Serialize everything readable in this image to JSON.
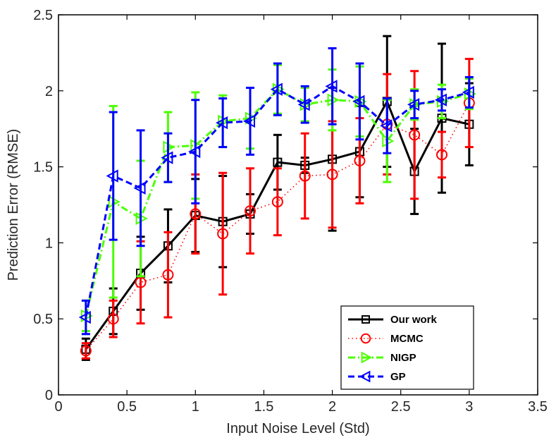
{
  "chart_data": {
    "type": "line",
    "title": "",
    "xlabel": "Input Noise Level (Std)",
    "ylabel": "Prediction Error (RMSE)",
    "xlim": [
      0,
      3.5
    ],
    "ylim": [
      0,
      2.5
    ],
    "xticks": [
      0,
      0.5,
      1,
      1.5,
      2,
      2.5,
      3,
      3.5
    ],
    "xtick_labels": [
      "0",
      "0.5",
      "1",
      "1.5",
      "2",
      "2.5",
      "3",
      "3.5"
    ],
    "yticks": [
      0,
      0.5,
      1,
      1.5,
      2,
      2.5
    ],
    "ytick_labels": [
      "0",
      "0.5",
      "1",
      "1.5",
      "2",
      "2.5"
    ],
    "legend_position": "bottom-right",
    "x": [
      0.2,
      0.4,
      0.6,
      0.8,
      1.0,
      1.2,
      1.4,
      1.6,
      1.8,
      2.0,
      2.2,
      2.4,
      2.6,
      2.8,
      3.0
    ],
    "series": [
      {
        "name": "Our work",
        "color": "#000000",
        "dash": "solid",
        "marker": "square",
        "values": [
          0.3,
          0.55,
          0.8,
          0.98,
          1.18,
          1.14,
          1.19,
          1.53,
          1.51,
          1.55,
          1.6,
          1.93,
          1.47,
          1.82,
          1.78
        ],
        "errors": [
          0.07,
          0.15,
          0.24,
          0.24,
          0.24,
          0.3,
          0.13,
          0.18,
          0.05,
          0.47,
          0.3,
          0.43,
          0.28,
          0.49,
          0.27
        ]
      },
      {
        "name": "MCMC",
        "color": "#ff0000",
        "dash": "dotted",
        "marker": "circle",
        "values": [
          0.29,
          0.5,
          0.74,
          0.79,
          1.19,
          1.06,
          1.21,
          1.27,
          1.44,
          1.45,
          1.54,
          1.78,
          1.71,
          1.58,
          1.92
        ],
        "errors": [
          0.05,
          0.12,
          0.27,
          0.28,
          0.26,
          0.4,
          0.28,
          0.22,
          0.28,
          0.35,
          0.28,
          0.33,
          0.42,
          0.15,
          0.29
        ]
      },
      {
        "name": "NIGP",
        "color": "#4cff00",
        "dash": "dashdot",
        "marker": "triangle-right",
        "values": [
          0.52,
          1.27,
          1.16,
          1.63,
          1.64,
          1.8,
          1.82,
          2.01,
          1.91,
          1.94,
          1.93,
          1.67,
          1.91,
          1.93,
          1.98
        ],
        "errors": [
          0.1,
          0.63,
          0.38,
          0.23,
          0.35,
          0.17,
          0.2,
          0.16,
          0.11,
          0.2,
          0.23,
          0.27,
          0.1,
          0.11,
          0.1
        ]
      },
      {
        "name": "GP",
        "color": "#0000ff",
        "dash": "dashed",
        "marker": "triangle-left",
        "values": [
          0.51,
          1.44,
          1.36,
          1.56,
          1.6,
          1.79,
          1.8,
          2.01,
          1.91,
          2.03,
          1.93,
          1.77,
          1.91,
          1.94,
          1.99
        ],
        "errors": [
          0.11,
          0.42,
          0.38,
          0.16,
          0.34,
          0.16,
          0.22,
          0.17,
          0.12,
          0.25,
          0.25,
          0.18,
          0.09,
          0.07,
          0.1
        ]
      }
    ]
  }
}
